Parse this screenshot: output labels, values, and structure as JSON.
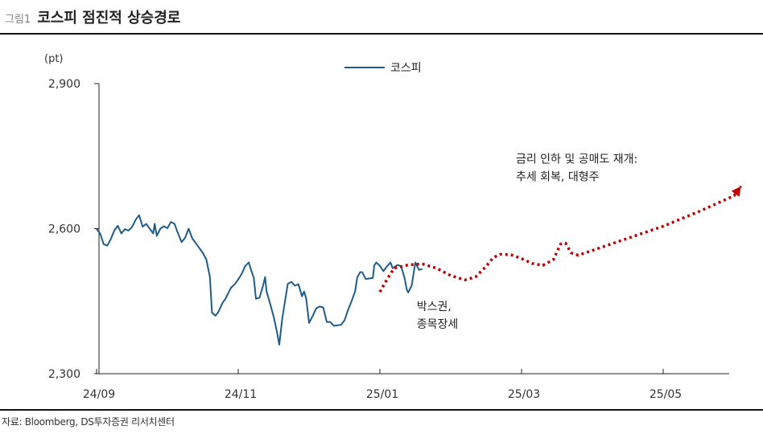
{
  "figure": {
    "number": "그림1",
    "title": "코스피 점진적 상승경로",
    "source": "자료: Bloomberg, DS투자증권 리서치센터"
  },
  "colors": {
    "actual_line": "#1f5c8a",
    "forecast_line": "#c00000",
    "axis": "#222222",
    "rule": "#111111"
  },
  "chart_data": {
    "type": "line",
    "title": "",
    "ylabel": "(pt)",
    "ylim": [
      2300,
      2900
    ],
    "yticks": [
      {
        "value": 2300,
        "label": "2,300"
      },
      {
        "value": 2600,
        "label": "2,600"
      },
      {
        "value": 2900,
        "label": "2,900"
      }
    ],
    "xlim": [
      0,
      9.2
    ],
    "xticks": [
      {
        "value": 0,
        "label": "24/09"
      },
      {
        "value": 2,
        "label": "24/11"
      },
      {
        "value": 4,
        "label": "25/01"
      },
      {
        "value": 6,
        "label": "25/03"
      },
      {
        "value": 8,
        "label": "25/05"
      }
    ],
    "x_unit_note_hidden": false,
    "legend": {
      "position": "top-center",
      "entries": [
        "코스피"
      ]
    },
    "series": [
      {
        "name": "코스피",
        "style": "solid",
        "points": [
          [
            0.0,
            2599
          ],
          [
            0.05,
            2590
          ],
          [
            0.1,
            2568
          ],
          [
            0.15,
            2565
          ],
          [
            0.2,
            2578
          ],
          [
            0.25,
            2596
          ],
          [
            0.3,
            2606
          ],
          [
            0.35,
            2590
          ],
          [
            0.4,
            2599
          ],
          [
            0.45,
            2596
          ],
          [
            0.5,
            2603
          ],
          [
            0.55,
            2618
          ],
          [
            0.6,
            2628
          ],
          [
            0.65,
            2604
          ],
          [
            0.7,
            2610
          ],
          [
            0.75,
            2600
          ],
          [
            0.8,
            2590
          ],
          [
            0.82,
            2610
          ],
          [
            0.85,
            2585
          ],
          [
            0.9,
            2600
          ],
          [
            0.95,
            2605
          ],
          [
            1.0,
            2601
          ],
          [
            1.05,
            2614
          ],
          [
            1.1,
            2610
          ],
          [
            1.15,
            2590
          ],
          [
            1.2,
            2572
          ],
          [
            1.25,
            2581
          ],
          [
            1.3,
            2600
          ],
          [
            1.35,
            2580
          ],
          [
            1.4,
            2570
          ],
          [
            1.45,
            2560
          ],
          [
            1.5,
            2550
          ],
          [
            1.55,
            2536
          ],
          [
            1.6,
            2500
          ],
          [
            1.63,
            2426
          ],
          [
            1.68,
            2420
          ],
          [
            1.72,
            2428
          ],
          [
            1.78,
            2447
          ],
          [
            1.82,
            2455
          ],
          [
            1.87,
            2470
          ],
          [
            1.9,
            2478
          ],
          [
            1.95,
            2485
          ],
          [
            2.0,
            2495
          ],
          [
            2.05,
            2507
          ],
          [
            2.1,
            2523
          ],
          [
            2.15,
            2530
          ],
          [
            2.18,
            2515
          ],
          [
            2.22,
            2498
          ],
          [
            2.25,
            2455
          ],
          [
            2.3,
            2457
          ],
          [
            2.35,
            2482
          ],
          [
            2.38,
            2500
          ],
          [
            2.4,
            2470
          ],
          [
            2.45,
            2445
          ],
          [
            2.5,
            2418
          ],
          [
            2.55,
            2384
          ],
          [
            2.58,
            2360
          ],
          [
            2.62,
            2413
          ],
          [
            2.66,
            2450
          ],
          [
            2.7,
            2486
          ],
          [
            2.75,
            2490
          ],
          [
            2.8,
            2482
          ],
          [
            2.85,
            2485
          ],
          [
            2.9,
            2460
          ],
          [
            2.93,
            2470
          ],
          [
            2.96,
            2455
          ],
          [
            3.0,
            2405
          ],
          [
            3.05,
            2419
          ],
          [
            3.1,
            2435
          ],
          [
            3.15,
            2439
          ],
          [
            3.2,
            2437
          ],
          [
            3.25,
            2407
          ],
          [
            3.3,
            2407
          ],
          [
            3.35,
            2399
          ],
          [
            3.4,
            2400
          ],
          [
            3.45,
            2401
          ],
          [
            3.5,
            2410
          ],
          [
            3.55,
            2432
          ],
          [
            3.6,
            2450
          ],
          [
            3.65,
            2470
          ],
          [
            3.68,
            2499
          ],
          [
            3.72,
            2510
          ],
          [
            3.75,
            2510
          ],
          [
            3.8,
            2496
          ],
          [
            3.85,
            2497
          ],
          [
            3.9,
            2498
          ],
          [
            3.92,
            2524
          ],
          [
            3.95,
            2530
          ],
          [
            4.0,
            2523
          ],
          [
            4.05,
            2512
          ],
          [
            4.1,
            2522
          ],
          [
            4.15,
            2530
          ],
          [
            4.18,
            2518
          ],
          [
            4.2,
            2520
          ],
          [
            4.25,
            2525
          ],
          [
            4.3,
            2522
          ],
          [
            4.35,
            2497
          ],
          [
            4.38,
            2474
          ],
          [
            4.4,
            2468
          ],
          [
            4.45,
            2483
          ],
          [
            4.5,
            2530
          ],
          [
            4.55,
            2515
          ],
          [
            4.6,
            2516
          ]
        ]
      },
      {
        "name": "",
        "style": "dotted",
        "points": [
          [
            4.0,
            2469
          ],
          [
            4.1,
            2495
          ],
          [
            4.2,
            2518
          ],
          [
            4.4,
            2525
          ],
          [
            4.6,
            2527
          ],
          [
            4.8,
            2518
          ],
          [
            5.0,
            2503
          ],
          [
            5.2,
            2494
          ],
          [
            5.35,
            2500
          ],
          [
            5.5,
            2522
          ],
          [
            5.6,
            2540
          ],
          [
            5.7,
            2547
          ],
          [
            5.85,
            2546
          ],
          [
            6.0,
            2538
          ],
          [
            6.15,
            2528
          ],
          [
            6.3,
            2524
          ],
          [
            6.45,
            2536
          ],
          [
            6.55,
            2568
          ],
          [
            6.62,
            2570
          ],
          [
            6.7,
            2550
          ],
          [
            6.8,
            2545
          ],
          [
            7.0,
            2555
          ],
          [
            7.5,
            2580
          ],
          [
            8.0,
            2605
          ],
          [
            8.5,
            2635
          ],
          [
            9.0,
            2668
          ],
          [
            9.1,
            2688
          ]
        ]
      }
    ],
    "annotations": [
      {
        "id": "box",
        "lines": [
          "박스권,",
          "종목장세"
        ],
        "x": 4.52,
        "y": 2431
      },
      {
        "id": "recovery",
        "lines": [
          "금리 인하 및 공매도 재개:",
          "추세 회복, 대형주"
        ],
        "x": 5.92,
        "y": 2736
      }
    ]
  }
}
